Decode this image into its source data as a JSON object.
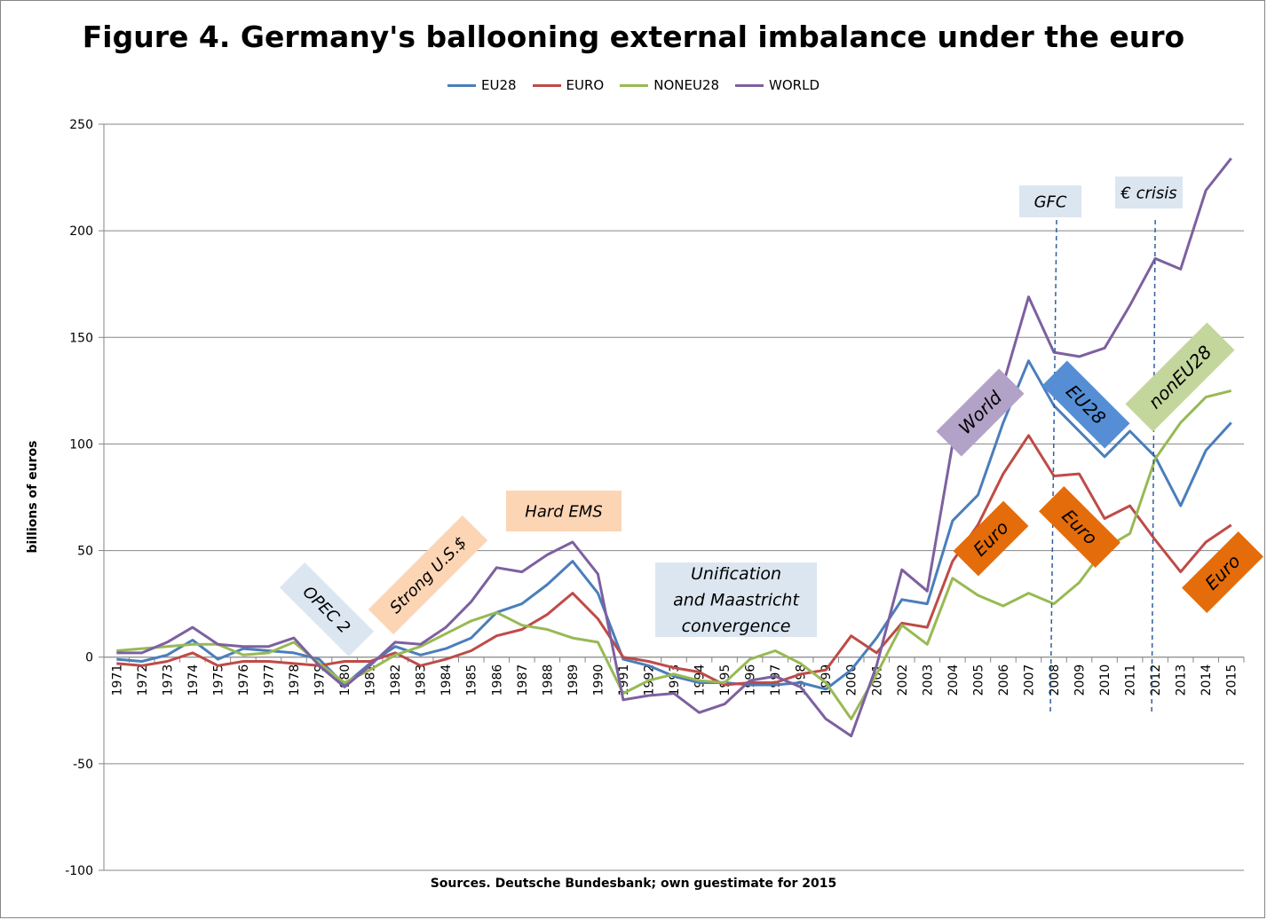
{
  "chart_data": {
    "type": "line",
    "title": "Figure 4. Germany's ballooning external imbalance under the euro",
    "ylabel": "billions of euros",
    "xlabel": "Sources. Deutsche Bundesbank; own guestimate for 2015",
    "ylim": [
      -100,
      250
    ],
    "yticks": [
      -100,
      -50,
      0,
      50,
      100,
      150,
      200,
      250
    ],
    "grid": true,
    "legend_position": "top",
    "x": [
      "1971",
      "1972",
      "1973",
      "1974",
      "1975",
      "1976",
      "1977",
      "1978",
      "1979",
      "1980",
      "1981",
      "1982",
      "1983",
      "1984",
      "1985",
      "1986",
      "1987",
      "1988",
      "1989",
      "1990",
      "1991",
      "1992",
      "1993",
      "1994",
      "1995",
      "1996",
      "1997",
      "1998",
      "1999",
      "2000",
      "2001",
      "2002",
      "2003",
      "2004",
      "2005",
      "2006",
      "2007",
      "2008",
      "2009",
      "2010",
      "2011",
      "2012",
      "2013",
      "2014",
      "2015"
    ],
    "series": [
      {
        "name": "EU28",
        "color": "#4a7ebb",
        "values": [
          -1,
          -2,
          1,
          8,
          -1,
          4,
          3,
          2,
          -1,
          -13,
          -3,
          5,
          1,
          4,
          9,
          21,
          25,
          34,
          45,
          30,
          -1,
          -4,
          -9,
          -12,
          -12,
          -13,
          -13,
          -12,
          -15,
          -6,
          9,
          27,
          25,
          64,
          76,
          110,
          139,
          118,
          106,
          94,
          106,
          94,
          71,
          97,
          110
        ]
      },
      {
        "name": "EURO",
        "color": "#be4b48",
        "values": [
          -3,
          -4,
          -2,
          2,
          -4,
          -2,
          -2,
          -3,
          -4,
          -2,
          -2,
          2,
          -4,
          -1,
          3,
          10,
          13,
          20,
          30,
          18,
          0,
          -2,
          -5,
          -7,
          -13,
          -12,
          -12,
          -8,
          -6,
          10,
          2,
          16,
          14,
          45,
          62,
          86,
          104,
          85,
          86,
          65,
          71,
          55,
          40,
          54,
          62
        ]
      },
      {
        "name": "NONEU28",
        "color": "#98b954",
        "values": [
          3,
          4,
          5,
          6,
          6,
          1,
          2,
          7,
          -3,
          -12,
          -6,
          1,
          5,
          11,
          17,
          21,
          15,
          13,
          9,
          7,
          -17,
          -11,
          -8,
          -11,
          -12,
          -1,
          3,
          -3,
          -12,
          -29,
          -8,
          15,
          6,
          37,
          29,
          24,
          30,
          25,
          35,
          51,
          58,
          93,
          110,
          122,
          125
        ]
      },
      {
        "name": "WORLD",
        "color": "#7d60a0",
        "values": [
          2,
          2,
          7,
          14,
          6,
          5,
          5,
          9,
          -4,
          -14,
          -4,
          7,
          6,
          14,
          26,
          42,
          40,
          48,
          54,
          39,
          -20,
          -18,
          -17,
          -26,
          -22,
          -11,
          -9,
          -14,
          -29,
          -37,
          -4,
          41,
          31,
          100,
          106,
          128,
          169,
          143,
          141,
          145,
          165,
          187,
          182,
          219,
          234
        ]
      }
    ],
    "annotations": [
      {
        "text": "OPEC 2",
        "bg": "#dce6f1",
        "rotation": 45
      },
      {
        "text": "Strong U.S.$",
        "bg": "#fcd5b5",
        "rotation": -45
      },
      {
        "text": "Hard EMS",
        "bg": "#fcd5b5",
        "rotation": 0
      },
      {
        "text": "Unification\nand Maastricht\nconvergence",
        "bg": "#dce6f1",
        "rotation": 0
      },
      {
        "text": "World",
        "bg": "#b3a2c7",
        "rotation": -45
      },
      {
        "text": "Euro",
        "bg": "#e46c0a",
        "rotation": -45
      },
      {
        "text": "GFC",
        "bg": "#dce6f1",
        "rotation": 0
      },
      {
        "text": "EU28",
        "bg": "#558ed5",
        "rotation": 45
      },
      {
        "text": "Euro",
        "bg": "#e46c0a",
        "rotation": 45
      },
      {
        "text": "€ crisis",
        "bg": "#dce6f1",
        "rotation": 0
      },
      {
        "text": "nonEU28",
        "bg": "#c3d69b",
        "rotation": -45
      },
      {
        "text": "Euro",
        "bg": "#e46c0a",
        "rotation": -45
      }
    ],
    "event_lines": [
      {
        "x": "2008",
        "label": "GFC"
      },
      {
        "x": "2012",
        "label": "€ crisis"
      }
    ]
  }
}
